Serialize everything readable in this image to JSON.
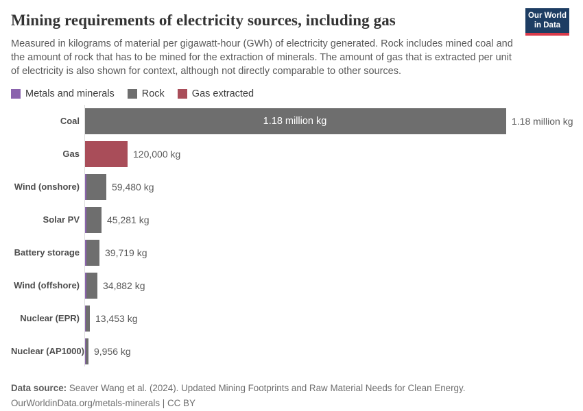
{
  "header": {
    "title": "Mining requirements of electricity sources, including gas",
    "subtitle": "Measured in kilograms of material per gigawatt-hour (GWh) of electricity generated. Rock includes mined coal and the amount of rock that has to be mined for the extraction of minerals. The amount of gas that is extracted per unit of electricity is also shown for context, although not directly comparable to other sources.",
    "logo": {
      "line1": "Our World",
      "line2": "in Data",
      "bg_color": "#1d3d63",
      "accent_color": "#d93a4a"
    }
  },
  "colors": {
    "metals": "#8a62ad",
    "rock": "#6e6e6e",
    "gas": "#a94d59",
    "axis": "#dcdcdc"
  },
  "legend": [
    {
      "label": "Metals and minerals",
      "color_key": "metals"
    },
    {
      "label": "Rock",
      "color_key": "rock"
    },
    {
      "label": "Gas extracted",
      "color_key": "gas"
    }
  ],
  "chart_data": {
    "type": "bar",
    "orientation": "horizontal",
    "title": "Mining requirements of electricity sources, including gas",
    "xlabel": "",
    "ylabel": "",
    "value_unit": "kg per GWh",
    "xlim": [
      0,
      1180000
    ],
    "grid": false,
    "legend_position": "top",
    "categories": [
      "Coal",
      "Gas",
      "Wind (onshore)",
      "Solar PV",
      "Battery storage",
      "Wind (offshore)",
      "Nuclear (EPR)",
      "Nuclear (AP1000)"
    ],
    "values": [
      1180000,
      120000,
      59480,
      45281,
      39719,
      34882,
      13453,
      9956
    ],
    "rows": [
      {
        "category": "Coal",
        "value": 1180000,
        "value_label": "1.18 million kg",
        "inside_label": "1.18 million kg",
        "color_key": "rock",
        "metals_sliver": false
      },
      {
        "category": "Gas",
        "value": 120000,
        "value_label": "120,000 kg",
        "inside_label": null,
        "color_key": "gas",
        "metals_sliver": false
      },
      {
        "category": "Wind (onshore)",
        "value": 59480,
        "value_label": "59,480 kg",
        "inside_label": null,
        "color_key": "rock",
        "metals_sliver": true
      },
      {
        "category": "Solar PV",
        "value": 45281,
        "value_label": "45,281 kg",
        "inside_label": null,
        "color_key": "rock",
        "metals_sliver": true
      },
      {
        "category": "Battery storage",
        "value": 39719,
        "value_label": "39,719 kg",
        "inside_label": null,
        "color_key": "rock",
        "metals_sliver": true
      },
      {
        "category": "Wind (offshore)",
        "value": 34882,
        "value_label": "34,882 kg",
        "inside_label": null,
        "color_key": "rock",
        "metals_sliver": true
      },
      {
        "category": "Nuclear (EPR)",
        "value": 13453,
        "value_label": "13,453 kg",
        "inside_label": null,
        "color_key": "rock",
        "metals_sliver": true
      },
      {
        "category": "Nuclear (AP1000)",
        "value": 9956,
        "value_label": "9,956 kg",
        "inside_label": null,
        "color_key": "rock",
        "metals_sliver": true
      }
    ]
  },
  "footer": {
    "source_label": "Data source:",
    "source_text": " Seaver Wang et al. (2024). Updated Mining Footprints and Raw Material Needs for Clean Energy.",
    "link_text": "OurWorldinData.org/metals-minerals | CC BY"
  }
}
